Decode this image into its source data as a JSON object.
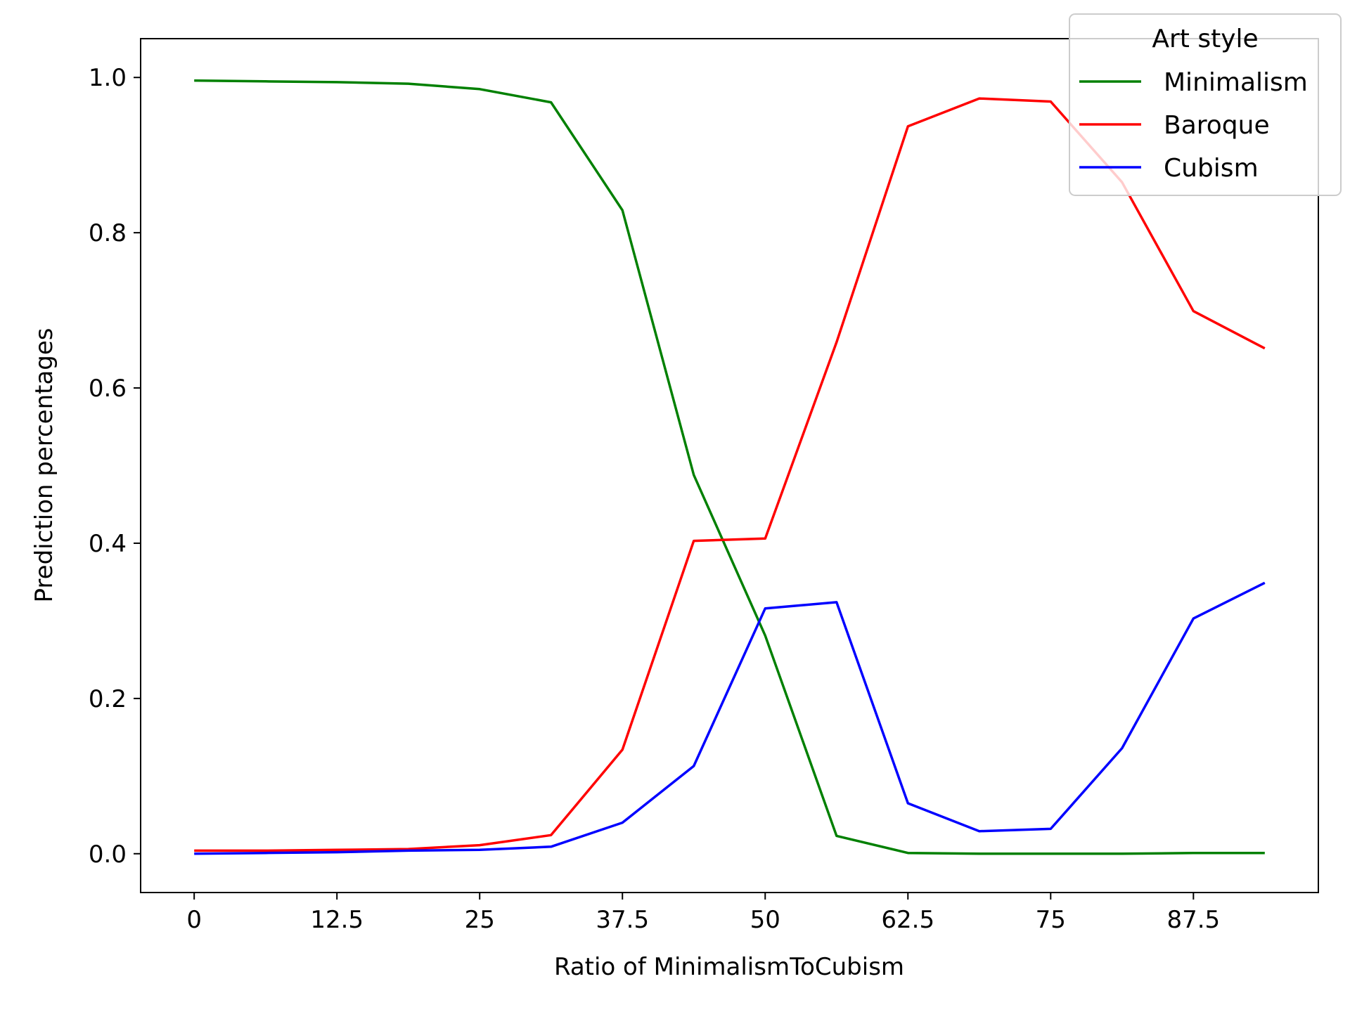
{
  "chart_data": {
    "type": "line",
    "title": "",
    "xlabel": "Ratio of MinimalismToCubism",
    "ylabel": "Prediction percentages",
    "xlim": [
      -4.69,
      98.44
    ],
    "ylim": [
      -0.05,
      1.05
    ],
    "x_ticks": [
      0,
      12.5,
      25,
      37.5,
      50,
      62.5,
      75,
      87.5
    ],
    "x_tick_labels": [
      "0",
      "12.5",
      "25",
      "37.5",
      "50",
      "62.5",
      "75",
      "87.5"
    ],
    "y_ticks": [
      0.0,
      0.2,
      0.4,
      0.6,
      0.8,
      1.0
    ],
    "y_tick_labels": [
      "0.0",
      "0.2",
      "0.4",
      "0.6",
      "0.8",
      "1.0"
    ],
    "grid": false,
    "legend": {
      "title": "Art style",
      "placement": "top-right"
    },
    "x": [
      0,
      6.25,
      12.5,
      18.75,
      25,
      31.25,
      37.5,
      43.75,
      50,
      56.25,
      62.5,
      68.75,
      75,
      81.25,
      87.5,
      93.75
    ],
    "series": [
      {
        "name": "Minimalism",
        "color": "#008000",
        "values": [
          0.996,
          0.995,
          0.994,
          0.992,
          0.985,
          0.968,
          0.829,
          0.488,
          0.281,
          0.023,
          0.001,
          0.0,
          0.0,
          0.0,
          0.001,
          0.001
        ]
      },
      {
        "name": "Baroque",
        "color": "#ff0000",
        "values": [
          0.004,
          0.004,
          0.005,
          0.006,
          0.011,
          0.024,
          0.134,
          0.403,
          0.406,
          0.659,
          0.937,
          0.973,
          0.969,
          0.865,
          0.699,
          0.651
        ]
      },
      {
        "name": "Cubism",
        "color": "#0000ff",
        "values": [
          0.0,
          0.001,
          0.002,
          0.004,
          0.005,
          0.009,
          0.04,
          0.113,
          0.316,
          0.324,
          0.065,
          0.029,
          0.032,
          0.136,
          0.303,
          0.349
        ]
      }
    ]
  }
}
